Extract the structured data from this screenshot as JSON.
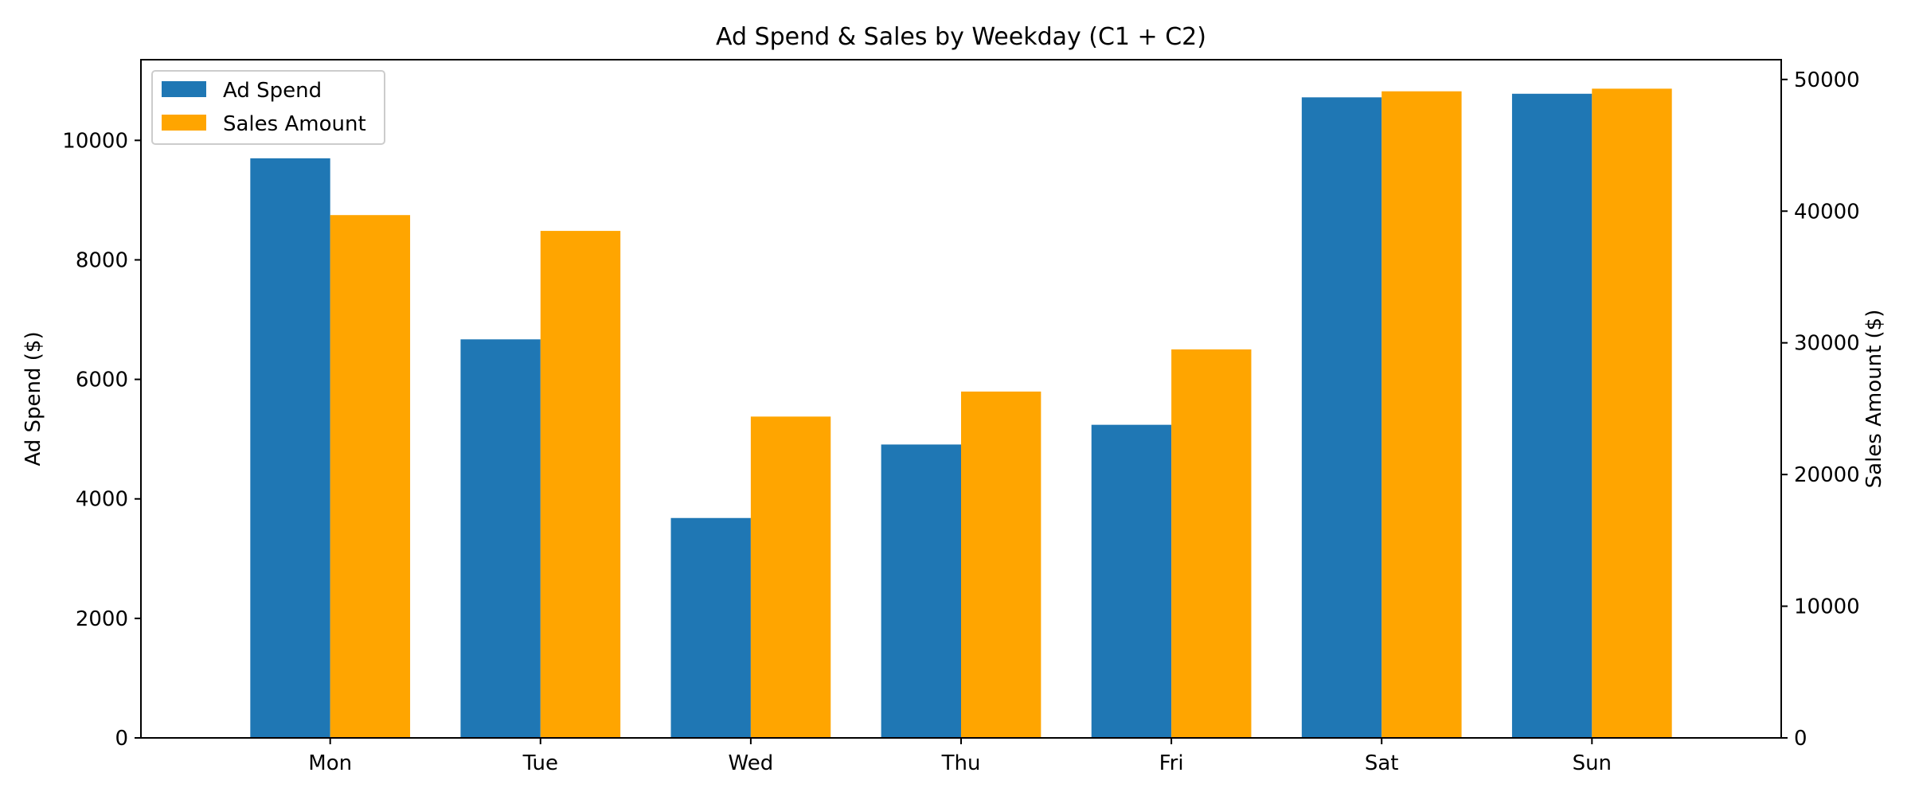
{
  "chart_data": {
    "type": "bar",
    "title": "Ad Spend & Sales by Weekday (C1 + C2)",
    "categories": [
      "Mon",
      "Tue",
      "Wed",
      "Thu",
      "Fri",
      "Sat",
      "Sun"
    ],
    "series": [
      {
        "name": "Ad Spend",
        "axis": "left",
        "color": "#1f77b4",
        "values": [
          9700,
          6670,
          3680,
          4910,
          5240,
          10720,
          10780
        ]
      },
      {
        "name": "Sales Amount",
        "axis": "right",
        "color": "#ffa500",
        "values": [
          39700,
          38500,
          24400,
          26300,
          29500,
          49100,
          49300
        ]
      }
    ],
    "ylabel_left": "Ad Spend ($)",
    "ylabel_right": "Sales Amount ($)",
    "ylim_left": [
      0,
      11350
    ],
    "ylim_right": [
      0,
      51500
    ],
    "yticks_left": [
      0,
      2000,
      4000,
      6000,
      8000,
      10000
    ],
    "yticks_right": [
      0,
      10000,
      20000,
      30000,
      40000,
      50000
    ],
    "grid": false,
    "legend_position": "top-left"
  }
}
